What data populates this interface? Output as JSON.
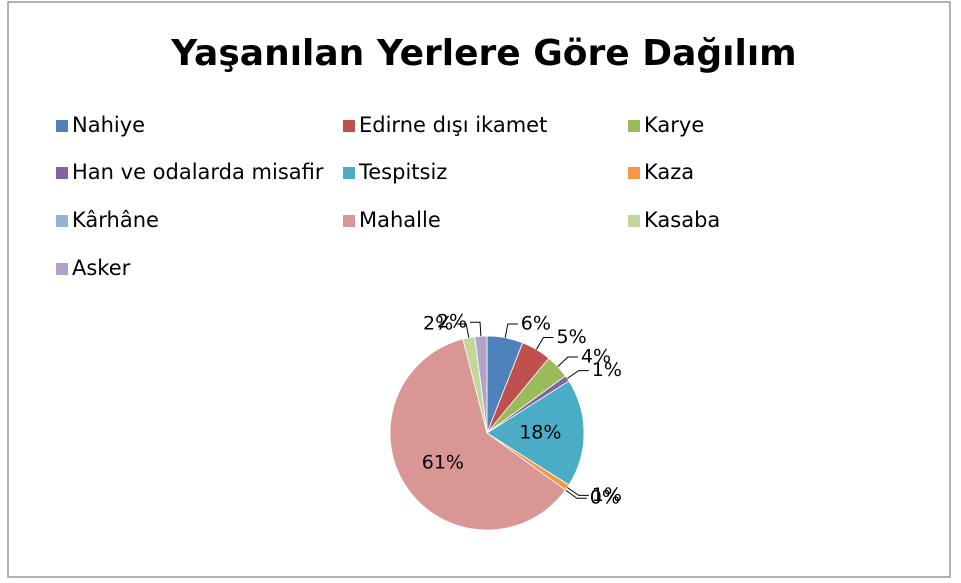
{
  "chart_data": {
    "type": "pie",
    "title": "Yaşanılan Yerlere Göre Dağılım",
    "categories": [
      "Nahiye",
      "Edirne dışı ikamet",
      "Karye",
      "Han ve odalarda misafir",
      "Tespitsiz",
      "Kaza",
      "Kârhâne",
      "Mahalle",
      "Kasaba",
      "Asker"
    ],
    "values": [
      6,
      5,
      4,
      1,
      18,
      1,
      0,
      61,
      2,
      2
    ],
    "value_labels": [
      "6%",
      "5%",
      "4%",
      "1%",
      "18%",
      "1%",
      "0%",
      "61%",
      "2%",
      "2%"
    ],
    "colors": [
      "#4F81BD",
      "#C0504D",
      "#9BBB59",
      "#8064A2",
      "#4BACC6",
      "#F79646",
      "#95B3D7",
      "#D99694",
      "#C3D69B",
      "#B3A2C7"
    ],
    "legend": "top"
  }
}
